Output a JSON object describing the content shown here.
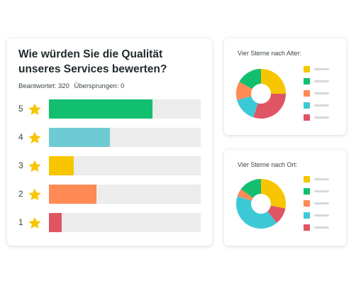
{
  "main": {
    "question": "Wie würden Sie die Qualität unseres Services bewerten?",
    "answered_label": "Beantwortet: 320",
    "skipped_label": "Übersprungen: 0",
    "ratings": [
      {
        "label": "5",
        "fraction": 0.68,
        "color": "#12bf6f"
      },
      {
        "label": "4",
        "fraction": 0.4,
        "color": "#6fcbd3"
      },
      {
        "label": "3",
        "fraction": 0.165,
        "color": "#f7c600"
      },
      {
        "label": "2",
        "fraction": 0.315,
        "color": "#ff8a55"
      },
      {
        "label": "1",
        "fraction": 0.085,
        "color": "#e05564"
      }
    ],
    "star_color": "#f7c600",
    "icon": "star-icon"
  },
  "by_age": {
    "title": "Vier Sterne nach Alter:",
    "segments": [
      {
        "value": 25,
        "color": "#f7c600"
      },
      {
        "value": 30,
        "color": "#e05564"
      },
      {
        "value": 16,
        "color": "#3cc9d6"
      },
      {
        "value": 12,
        "color": "#ff8a55"
      },
      {
        "value": 17,
        "color": "#12bf6f"
      }
    ],
    "legend_colors": [
      "#f7c600",
      "#12bf6f",
      "#ff8a55",
      "#3cc9d6",
      "#e05564"
    ]
  },
  "by_location": {
    "title": "Vier Sterne nach Ort:",
    "segments": [
      {
        "value": 28,
        "color": "#f7c600"
      },
      {
        "value": 11,
        "color": "#e05564"
      },
      {
        "value": 41,
        "color": "#3cc9d6"
      },
      {
        "value": 5,
        "color": "#ff8a55"
      },
      {
        "value": 15,
        "color": "#12bf6f"
      }
    ],
    "legend_colors": [
      "#f7c600",
      "#12bf6f",
      "#ff8a55",
      "#3cc9d6",
      "#e05564"
    ]
  }
}
